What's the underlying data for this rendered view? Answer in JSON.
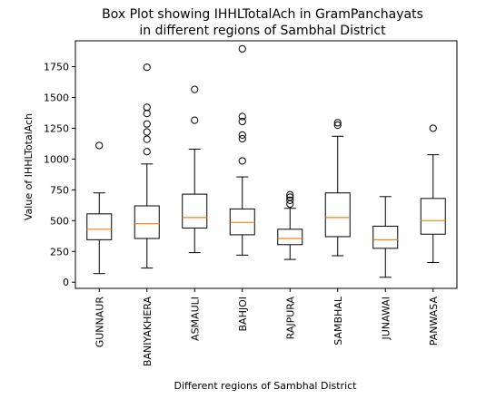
{
  "chart_data": {
    "type": "box",
    "title_lines": [
      "Box Plot showing IHHLTotalAch in GramPanchayats",
      "in different regions of Sambhal District"
    ],
    "xlabel": "Different regions of Sambhal District",
    "ylabel": "Value of IHHLTotalAch",
    "ylim": [
      -50,
      1960
    ],
    "yticks": [
      0,
      250,
      500,
      750,
      1000,
      1250,
      1500,
      1750
    ],
    "grid": false,
    "box_color": "#000000",
    "median_color": "#ff7f0e",
    "categories": [
      "GUNNAUR",
      "BANIYAKHERA",
      "ASMAULI",
      "BAHJOI",
      "RAJPURA",
      "SAMBHAL",
      "JUNAWAI",
      "PANWASA"
    ],
    "boxes": [
      {
        "category": "GUNNAUR",
        "whisker_low": 70,
        "q1": 345,
        "median": 430,
        "q3": 555,
        "whisker_high": 725,
        "outliers": [
          1110
        ]
      },
      {
        "category": "BANIYAKHERA",
        "whisker_low": 115,
        "q1": 355,
        "median": 475,
        "q3": 620,
        "whisker_high": 960,
        "outliers": [
          1060,
          1160,
          1220,
          1285,
          1370,
          1420,
          1745
        ]
      },
      {
        "category": "ASMAULI",
        "whisker_low": 240,
        "q1": 440,
        "median": 525,
        "q3": 715,
        "whisker_high": 1080,
        "outliers": [
          1315,
          1565
        ]
      },
      {
        "category": "BAHJOI",
        "whisker_low": 220,
        "q1": 385,
        "median": 485,
        "q3": 595,
        "whisker_high": 855,
        "outliers": [
          985,
          1165,
          1195,
          1305,
          1345,
          1895
        ]
      },
      {
        "category": "RAJPURA",
        "whisker_low": 185,
        "q1": 305,
        "median": 355,
        "q3": 430,
        "whisker_high": 600,
        "outliers": [
          635,
          665,
          690,
          710
        ]
      },
      {
        "category": "SAMBHAL",
        "whisker_low": 215,
        "q1": 370,
        "median": 525,
        "q3": 725,
        "whisker_high": 1185,
        "outliers": [
          1275,
          1295
        ]
      },
      {
        "category": "JUNAWAI",
        "whisker_low": 40,
        "q1": 275,
        "median": 345,
        "q3": 455,
        "whisker_high": 695,
        "outliers": []
      },
      {
        "category": "PANWASA",
        "whisker_low": 160,
        "q1": 390,
        "median": 500,
        "q3": 680,
        "whisker_high": 1035,
        "outliers": [
          1250
        ]
      }
    ]
  }
}
